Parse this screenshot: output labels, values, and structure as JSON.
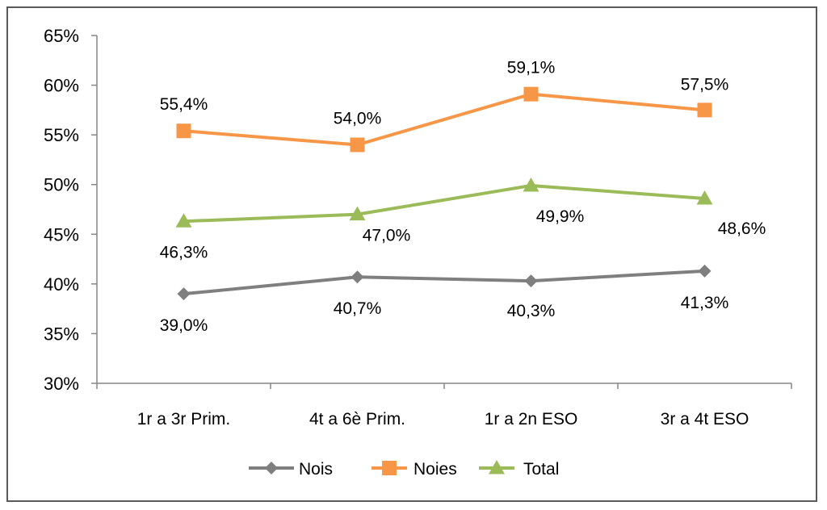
{
  "chart_data": {
    "type": "line",
    "title": "",
    "xlabel": "",
    "ylabel": "",
    "categories": [
      "1r a 3r Prim.",
      "4t a 6è Prim.",
      "1r a 2n ESO",
      "3r a 4t ESO"
    ],
    "ylim": [
      30,
      65
    ],
    "yticks": [
      30,
      35,
      40,
      45,
      50,
      55,
      60,
      65
    ],
    "ytick_labels": [
      "30%",
      "35%",
      "40%",
      "45%",
      "50%",
      "55%",
      "60%",
      "65%"
    ],
    "grid": false,
    "legend_position": "bottom",
    "series": [
      {
        "name": "Nois",
        "values": [
          39.0,
          40.7,
          40.3,
          41.3
        ],
        "labels": [
          "39,0%",
          "40,7%",
          "40,3%",
          "41,3%"
        ],
        "color": "#7f7f7f",
        "marker": "diamond"
      },
      {
        "name": "Noies",
        "values": [
          55.4,
          54.0,
          59.1,
          57.5
        ],
        "labels": [
          "55,4%",
          "54,0%",
          "59,1%",
          "57,5%"
        ],
        "color": "#f79646",
        "marker": "square"
      },
      {
        "name": "Total",
        "values": [
          46.3,
          47.0,
          49.9,
          48.6
        ],
        "labels": [
          "46,3%",
          "47,0%",
          "49,9%",
          "48,6%"
        ],
        "color": "#9bbb59",
        "marker": "triangle"
      }
    ]
  }
}
